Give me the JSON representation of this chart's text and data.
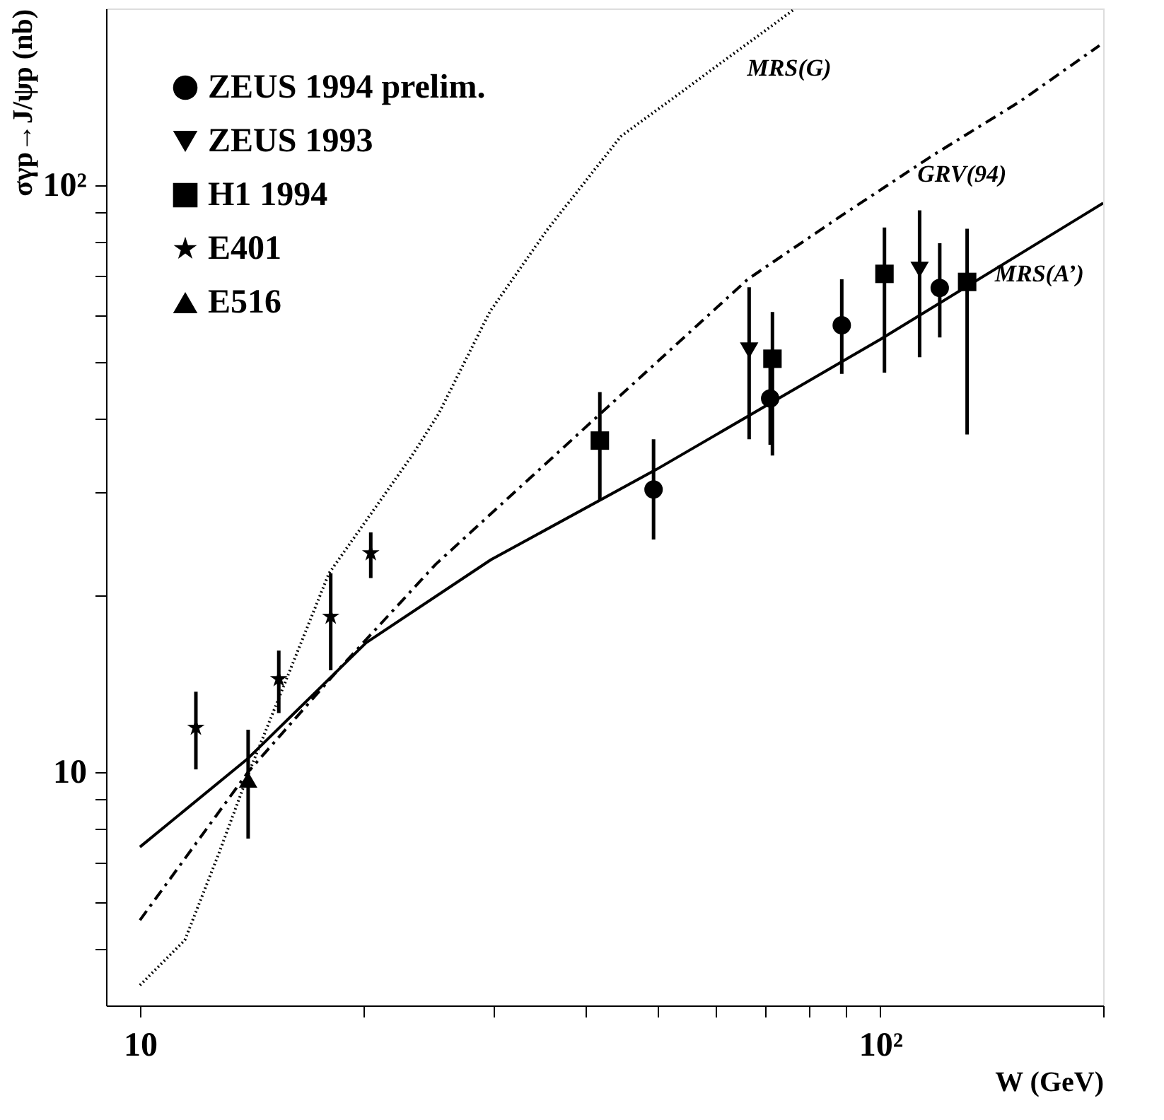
{
  "chart_data": {
    "type": "scatter",
    "xlabel": "W (GeV)",
    "ylabel": "σγp→J/ψp (nb)",
    "log": "xy",
    "grid": false,
    "legend": "top left",
    "xlim": [
      9,
      200
    ],
    "ylim": [
      4,
      200
    ],
    "xticks": [
      {
        "value": 10,
        "label": "10"
      },
      {
        "value": 20,
        "label": null
      },
      {
        "value": 30,
        "label": null
      },
      {
        "value": 40,
        "label": null
      },
      {
        "value": 50,
        "label": null
      },
      {
        "value": 60,
        "label": null
      },
      {
        "value": 70,
        "label": null
      },
      {
        "value": 80,
        "label": null
      },
      {
        "value": 90,
        "label": null
      },
      {
        "value": 100,
        "label": "10²"
      },
      {
        "value": 200,
        "label": null
      }
    ],
    "yticks": [
      {
        "value": 5,
        "label": null
      },
      {
        "value": 6,
        "label": null
      },
      {
        "value": 7,
        "label": null
      },
      {
        "value": 8,
        "label": null
      },
      {
        "value": 9,
        "label": null
      },
      10,
      {
        "value": 20,
        "label": null
      },
      {
        "value": 30,
        "label": null
      },
      {
        "value": 40,
        "label": null
      },
      {
        "value": 50,
        "label": null
      },
      {
        "value": 60,
        "label": null
      },
      {
        "value": 70,
        "label": null
      },
      {
        "value": 80,
        "label": null
      },
      {
        "value": 90,
        "label": null
      },
      {
        "value": 100,
        "label": "10²"
      }
    ],
    "series": [
      {
        "name": "ZEUS 1994 prelim.",
        "marker": "circle",
        "color": "#000000",
        "x": [
          49.4,
          71.0,
          88.7,
          120.3
        ],
        "values": [
          30.3,
          43.3,
          57.7,
          66.8
        ],
        "errors": [
          [
            24.9,
            36.9
          ],
          [
            36.1,
            49.3
          ],
          [
            47.7,
            69.1
          ],
          [
            55,
            79.6
          ]
        ]
      },
      {
        "name": "ZEUS 1993",
        "marker": "triangle-down",
        "color": "#000000",
        "x": [
          66.5,
          113
        ],
        "values": [
          52.3,
          71.8
        ],
        "errors": [
          [
            36.9,
            67
          ],
          [
            50.9,
            90.6
          ]
        ]
      },
      {
        "name": "H1 1994",
        "marker": "square",
        "color": "#000000",
        "x": [
          41.8,
          71.5,
          101.3,
          131
        ],
        "values": [
          36.7,
          50.6,
          70.6,
          68.4
        ],
        "errors": [
          [
            29.0,
            44.4
          ],
          [
            34.6,
            60.8
          ],
          [
            47.9,
            84.7
          ],
          [
            37.6,
            84.3
          ]
        ]
      },
      {
        "name": "E401",
        "marker": "star",
        "color": "#000000",
        "x": [
          11.9,
          15.4,
          18.1,
          20.5
        ],
        "values": [
          11.9,
          14.4,
          18.4,
          23.6
        ],
        "errors": [
          [
            10.1,
            13.7
          ],
          [
            12.6,
            16.1
          ],
          [
            14.9,
            21.8
          ],
          [
            21.4,
            25.6
          ]
        ]
      },
      {
        "name": "E516",
        "marker": "triangle",
        "color": "#000000",
        "x": [
          14.0
        ],
        "values": [
          9.7
        ],
        "errors": [
          [
            7.7,
            11.8
          ]
        ]
      },
      {
        "type": "line",
        "line_style": "solid",
        "color": "#000000",
        "x": [
          10,
          14,
          20.2,
          29.8,
          49.9,
          100,
          200
        ],
        "values": [
          7.45,
          10.55,
          16.6,
          23.0,
          32.8,
          54.6,
          93.2
        ]
      },
      {
        "type": "line",
        "line_style": "dashed",
        "color": "#000000",
        "x": [
          10,
          14,
          18.5,
          25.1,
          41.8,
          66.2,
          88,
          118,
          154.6,
          197.7
        ],
        "values": [
          5.59,
          10,
          14.9,
          22.6,
          40.7,
          69.1,
          88.2,
          112.6,
          139,
          173
        ]
      },
      {
        "type": "line",
        "line_style": "dotted",
        "color": "#000000",
        "x": [
          10,
          11.5,
          12.8,
          14,
          18,
          23.3,
          25.3,
          29.7,
          35.4,
          44.6,
          76.6
        ],
        "values": [
          4.33,
          5.17,
          7.3,
          9.9,
          21.8,
          34.6,
          40.7,
          60.9,
          83.6,
          121,
          199.6
        ]
      }
    ],
    "annotations": [
      {
        "text": "MRS(G)",
        "x": 60,
        "y": 158
      },
      {
        "text": "GRV(94)",
        "x": 128.9,
        "y": 120.5
      },
      {
        "text": "MRS(A’)",
        "x": 164,
        "y": 80.4
      }
    ]
  }
}
